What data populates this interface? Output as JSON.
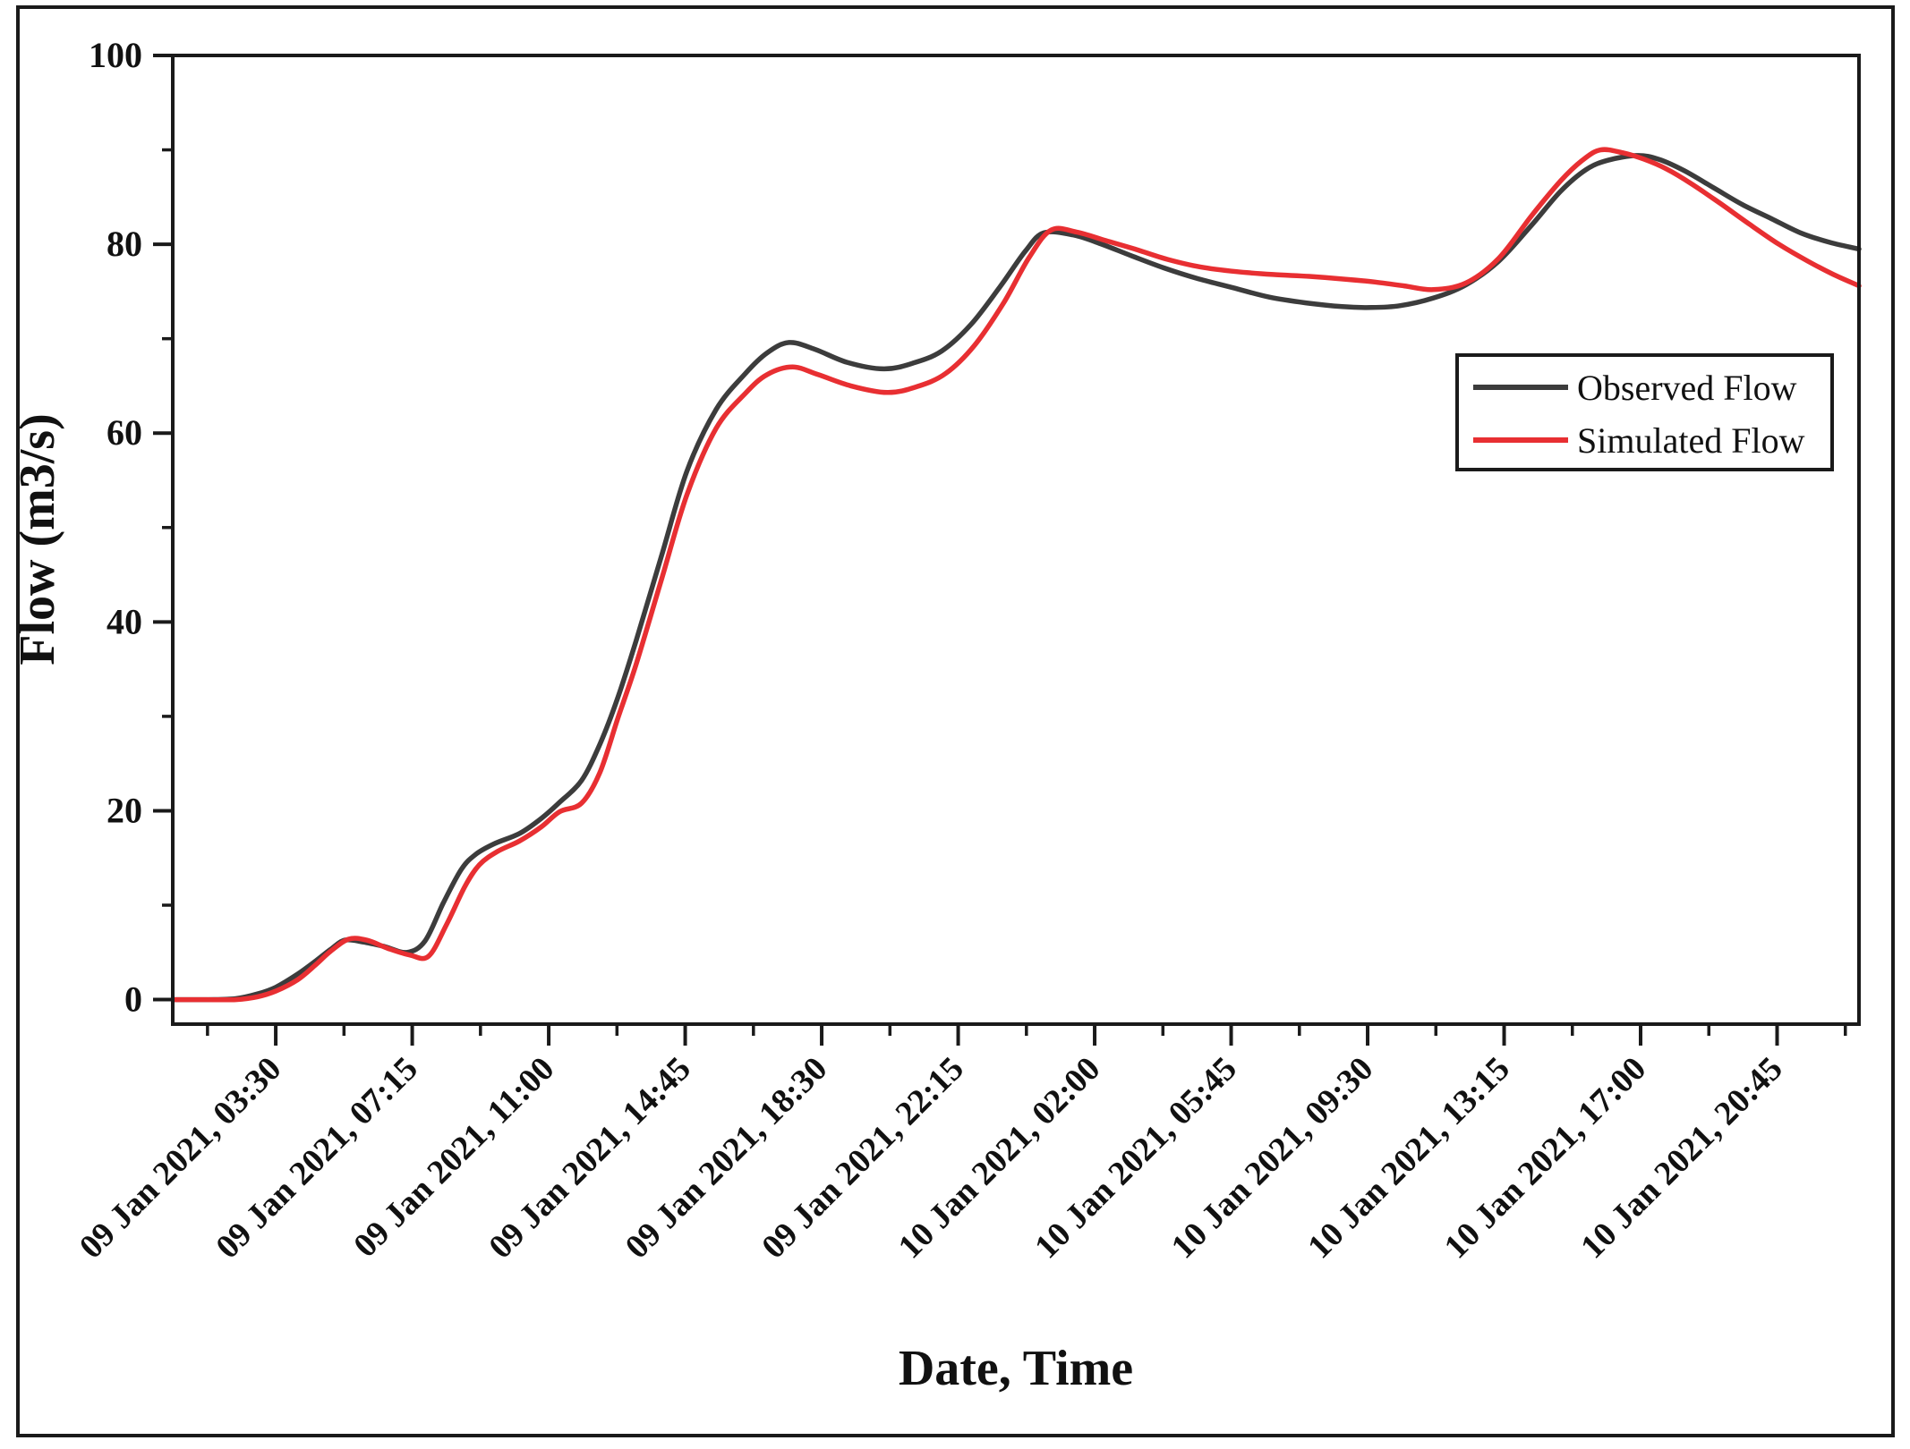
{
  "figure": {
    "y_axis_title": "Flow (m3/s)",
    "x_axis_title": "Date, Time",
    "legend": [
      {
        "label": "Observed Flow",
        "color": "#3c3c3c"
      },
      {
        "label": "Simulated Flow",
        "color": "#e82f32"
      }
    ],
    "frame_color": "#1a1a1a",
    "background_color": "#ffffff"
  },
  "chart_data": {
    "type": "line",
    "title": "",
    "xlabel": "Date, Time",
    "ylabel": "Flow (m3/s)",
    "grid": false,
    "legend_position": "upper right",
    "x_unit": "hours since 09 Jan 2021 00:00",
    "xlim_hours": [
      0.67,
      47.0
    ],
    "ylim": [
      -2.6,
      100
    ],
    "y_major_ticks": [
      0,
      20,
      40,
      60,
      80,
      100
    ],
    "y_minor_ticks": [
      10,
      30,
      50,
      70,
      90
    ],
    "x_major_tick_hours": [
      3.5,
      7.25,
      11.0,
      14.75,
      18.5,
      22.25,
      26.0,
      29.75,
      33.5,
      37.25,
      41.0,
      44.75
    ],
    "x_minor_tick_hours": [
      1.625,
      5.375,
      9.125,
      12.875,
      16.625,
      20.375,
      24.125,
      27.875,
      31.625,
      35.375,
      39.125,
      42.875,
      46.625
    ],
    "x_tick_labels": [
      "09 Jan 2021, 03:30",
      "09 Jan 2021, 07:15",
      "09 Jan 2021, 11:00",
      "09 Jan 2021, 14:45",
      "09 Jan 2021, 18:30",
      "09 Jan 2021, 22:15",
      "10 Jan 2021, 02:00",
      "10 Jan 2021, 05:45",
      "10 Jan 2021, 09:30",
      "10 Jan 2021, 13:15",
      "10 Jan 2021, 17:00",
      "10 Jan 2021, 20:45"
    ],
    "series": [
      {
        "name": "Observed Flow",
        "color": "#3c3c3c",
        "points": [
          [
            0.7,
            0
          ],
          [
            1.6,
            0
          ],
          [
            2.4,
            0.1
          ],
          [
            3.0,
            0.6
          ],
          [
            3.5,
            1.3
          ],
          [
            4.1,
            2.7
          ],
          [
            4.6,
            4.1
          ],
          [
            5.0,
            5.3
          ],
          [
            5.4,
            6.3
          ],
          [
            5.9,
            6.1
          ],
          [
            6.5,
            5.6
          ],
          [
            7.1,
            5.0
          ],
          [
            7.6,
            6.2
          ],
          [
            8.1,
            10.2
          ],
          [
            8.6,
            13.8
          ],
          [
            9.0,
            15.4
          ],
          [
            9.5,
            16.5
          ],
          [
            10.2,
            17.6
          ],
          [
            10.8,
            19.2
          ],
          [
            11.3,
            20.9
          ],
          [
            11.9,
            23.2
          ],
          [
            12.4,
            27.0
          ],
          [
            12.9,
            32.0
          ],
          [
            13.4,
            38.0
          ],
          [
            14.1,
            47.0
          ],
          [
            14.8,
            56.0
          ],
          [
            15.6,
            62.5
          ],
          [
            16.4,
            66.3
          ],
          [
            17.0,
            68.5
          ],
          [
            17.6,
            69.6
          ],
          [
            18.3,
            68.9
          ],
          [
            19.2,
            67.5
          ],
          [
            20.2,
            66.8
          ],
          [
            21.0,
            67.4
          ],
          [
            21.8,
            68.7
          ],
          [
            22.6,
            71.5
          ],
          [
            23.4,
            75.5
          ],
          [
            24.1,
            79.3
          ],
          [
            24.6,
            81.2
          ],
          [
            25.4,
            81.0
          ],
          [
            26.2,
            80.0
          ],
          [
            27.0,
            78.8
          ],
          [
            27.9,
            77.5
          ],
          [
            28.8,
            76.4
          ],
          [
            29.8,
            75.4
          ],
          [
            30.8,
            74.4
          ],
          [
            31.8,
            73.8
          ],
          [
            32.8,
            73.4
          ],
          [
            33.6,
            73.3
          ],
          [
            34.4,
            73.5
          ],
          [
            35.3,
            74.3
          ],
          [
            36.2,
            75.7
          ],
          [
            37.1,
            78.2
          ],
          [
            38.0,
            82.0
          ],
          [
            38.8,
            85.6
          ],
          [
            39.5,
            87.9
          ],
          [
            40.1,
            88.9
          ],
          [
            40.9,
            89.4
          ],
          [
            41.5,
            89.0
          ],
          [
            42.2,
            87.8
          ],
          [
            43.0,
            86.0
          ],
          [
            43.8,
            84.2
          ],
          [
            44.6,
            82.7
          ],
          [
            45.4,
            81.2
          ],
          [
            46.2,
            80.2
          ],
          [
            47.0,
            79.5
          ]
        ]
      },
      {
        "name": "Simulated Flow",
        "color": "#e82f32",
        "points": [
          [
            0.7,
            0
          ],
          [
            1.6,
            0
          ],
          [
            2.4,
            0
          ],
          [
            3.0,
            0.3
          ],
          [
            3.5,
            0.9
          ],
          [
            4.1,
            2.1
          ],
          [
            4.6,
            3.7
          ],
          [
            5.0,
            5.1
          ],
          [
            5.5,
            6.4
          ],
          [
            6.0,
            6.3
          ],
          [
            6.6,
            5.4
          ],
          [
            7.2,
            4.7
          ],
          [
            7.7,
            4.6
          ],
          [
            8.2,
            8.0
          ],
          [
            8.7,
            12.0
          ],
          [
            9.1,
            14.3
          ],
          [
            9.6,
            15.7
          ],
          [
            10.2,
            16.8
          ],
          [
            10.8,
            18.3
          ],
          [
            11.3,
            19.9
          ],
          [
            11.9,
            20.8
          ],
          [
            12.4,
            24.0
          ],
          [
            12.9,
            29.8
          ],
          [
            13.4,
            35.5
          ],
          [
            14.1,
            44.5
          ],
          [
            14.8,
            53.5
          ],
          [
            15.6,
            60.5
          ],
          [
            16.4,
            64.2
          ],
          [
            17.0,
            66.2
          ],
          [
            17.7,
            67.0
          ],
          [
            18.4,
            66.2
          ],
          [
            19.3,
            65.0
          ],
          [
            20.3,
            64.3
          ],
          [
            21.1,
            64.9
          ],
          [
            21.9,
            66.3
          ],
          [
            22.7,
            69.3
          ],
          [
            23.5,
            73.8
          ],
          [
            24.2,
            78.6
          ],
          [
            24.8,
            81.5
          ],
          [
            25.5,
            81.3
          ],
          [
            26.3,
            80.4
          ],
          [
            27.1,
            79.5
          ],
          [
            28.0,
            78.4
          ],
          [
            28.9,
            77.6
          ],
          [
            29.9,
            77.1
          ],
          [
            30.9,
            76.8
          ],
          [
            31.9,
            76.6
          ],
          [
            32.9,
            76.3
          ],
          [
            33.7,
            76.0
          ],
          [
            34.5,
            75.6
          ],
          [
            35.3,
            75.2
          ],
          [
            36.2,
            75.9
          ],
          [
            37.1,
            78.5
          ],
          [
            38.0,
            83.0
          ],
          [
            38.8,
            86.7
          ],
          [
            39.4,
            88.9
          ],
          [
            39.9,
            90.0
          ],
          [
            40.5,
            89.7
          ],
          [
            41.1,
            89.0
          ],
          [
            41.7,
            88.0
          ],
          [
            42.4,
            86.4
          ],
          [
            43.2,
            84.3
          ],
          [
            44.0,
            82.1
          ],
          [
            44.8,
            80.0
          ],
          [
            45.6,
            78.2
          ],
          [
            46.3,
            76.8
          ],
          [
            47.0,
            75.6
          ]
        ]
      }
    ]
  }
}
